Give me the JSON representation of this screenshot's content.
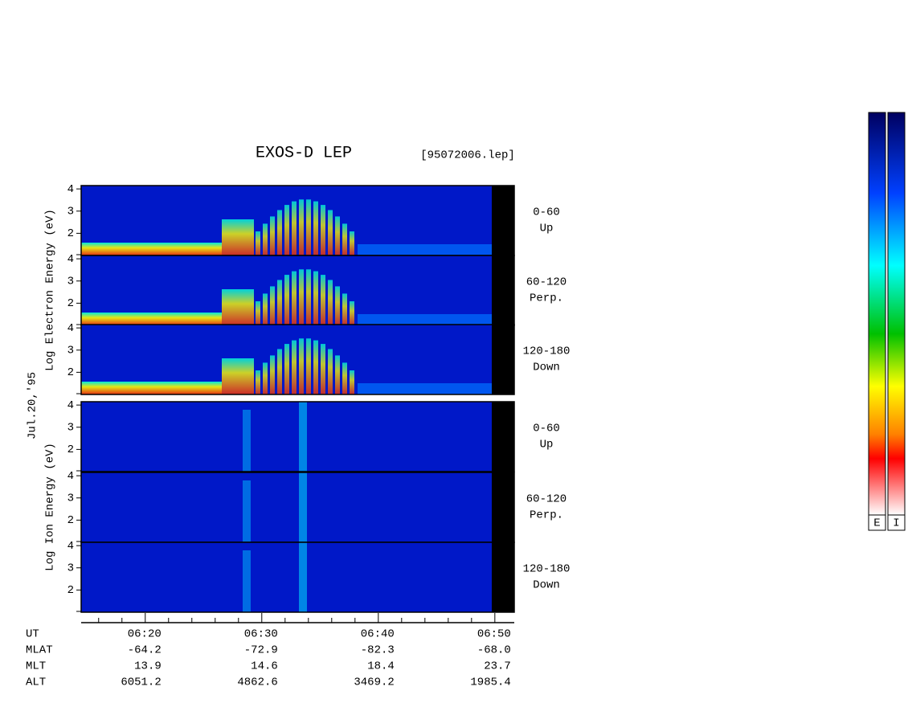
{
  "title": "EXOS-D LEP",
  "file": "[95072006.lep]",
  "date": "Jul.20,'95",
  "ylim": [
    1,
    4.15
  ],
  "yticks": [
    2,
    3,
    4
  ],
  "xlim": [
    "06:14:30",
    "06:51:40"
  ],
  "groups": [
    {
      "label": "Log  Electron  Energy (eV)",
      "panels": [
        {
          "angle": "0-60",
          "dir": "Up"
        },
        {
          "angle": "60-120",
          "dir": "Perp."
        },
        {
          "angle": "120-180",
          "dir": "Down"
        }
      ]
    },
    {
      "label": "Log  Ion  Energy (eV)",
      "panels": [
        {
          "angle": "0-60",
          "dir": "Up"
        },
        {
          "angle": "60-120",
          "dir": "Perp."
        },
        {
          "angle": "120-180",
          "dir": "Down"
        }
      ]
    }
  ],
  "orbit": {
    "rows": [
      {
        "name": "UT",
        "values": [
          "06:20",
          "06:30",
          "06:40",
          "06:50"
        ]
      },
      {
        "name": "MLAT",
        "values": [
          "-64.2",
          "-72.9",
          "-82.3",
          "-68.0"
        ]
      },
      {
        "name": "MLT",
        "values": [
          "13.9",
          "14.6",
          "18.4",
          "23.7"
        ]
      },
      {
        "name": "ALT",
        "values": [
          "6051.2",
          "4862.6",
          "3469.2",
          "1985.4"
        ]
      }
    ]
  },
  "colorbars": [
    "E",
    "I"
  ]
}
